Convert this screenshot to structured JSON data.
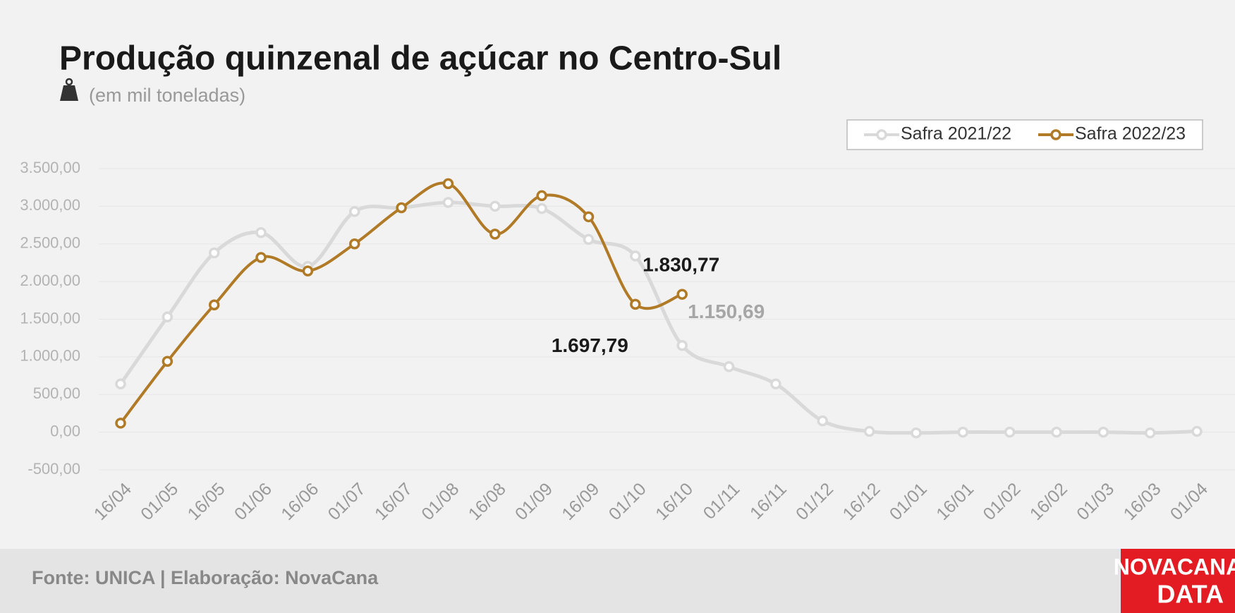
{
  "chart_data": {
    "type": "line",
    "title": "Produção quinzenal de açúcar no Centro-Sul",
    "subtitle": "(em mil toneladas)",
    "source": "Fonte: UNICA | Elaboração: NovaCana",
    "logo": [
      "NOVACANA",
      "DATA"
    ],
    "categories": [
      "16/04",
      "01/05",
      "16/05",
      "01/06",
      "16/06",
      "01/07",
      "16/07",
      "01/08",
      "16/08",
      "01/09",
      "16/09",
      "01/10",
      "16/10",
      "01/11",
      "16/11",
      "01/12",
      "16/12",
      "01/01",
      "16/01",
      "01/02",
      "16/02",
      "01/03",
      "16/03",
      "01/04"
    ],
    "series": [
      {
        "name": "Safra 2021/22",
        "color": "#d9d9d9",
        "values": [
          640,
          1530,
          2380,
          2650,
          2200,
          2930,
          2980,
          3050,
          3000,
          2970,
          2560,
          2340,
          1150.69,
          870,
          640,
          150,
          10,
          -10,
          0,
          0,
          0,
          0,
          -10,
          10
        ],
        "value_labels": [
          null,
          null,
          null,
          null,
          null,
          null,
          null,
          null,
          null,
          null,
          null,
          null,
          "1.150,69",
          null,
          null,
          null,
          null,
          null,
          null,
          null,
          null,
          null,
          null,
          null
        ]
      },
      {
        "name": "Safra 2022/23",
        "color": "#b07a26",
        "values": [
          120,
          940,
          1690,
          2320,
          2140,
          2500,
          2980,
          3300,
          2630,
          3140,
          2860,
          1697.79,
          1830.77,
          null,
          null,
          null,
          null,
          null,
          null,
          null,
          null,
          null,
          null,
          null
        ],
        "value_labels": [
          null,
          null,
          null,
          null,
          null,
          null,
          null,
          null,
          null,
          null,
          null,
          "1.697,79",
          "1.830,77",
          null,
          null,
          null,
          null,
          null,
          null,
          null,
          null,
          null,
          null,
          null
        ]
      }
    ],
    "ylim": [
      -500,
      3500
    ],
    "yticks": [
      {
        "value": -500,
        "label": "-500,00"
      },
      {
        "value": 0,
        "label": "0,00"
      },
      {
        "value": 500,
        "label": "500,00"
      },
      {
        "value": 1000,
        "label": "1.000,00"
      },
      {
        "value": 1500,
        "label": "1.500,00"
      },
      {
        "value": 2000,
        "label": "2.000,00"
      },
      {
        "value": 2500,
        "label": "2.500,00"
      },
      {
        "value": 3000,
        "label": "3.000,00"
      },
      {
        "value": 3500,
        "label": "3.500,00"
      }
    ],
    "grid": true,
    "legend": "top-right"
  }
}
